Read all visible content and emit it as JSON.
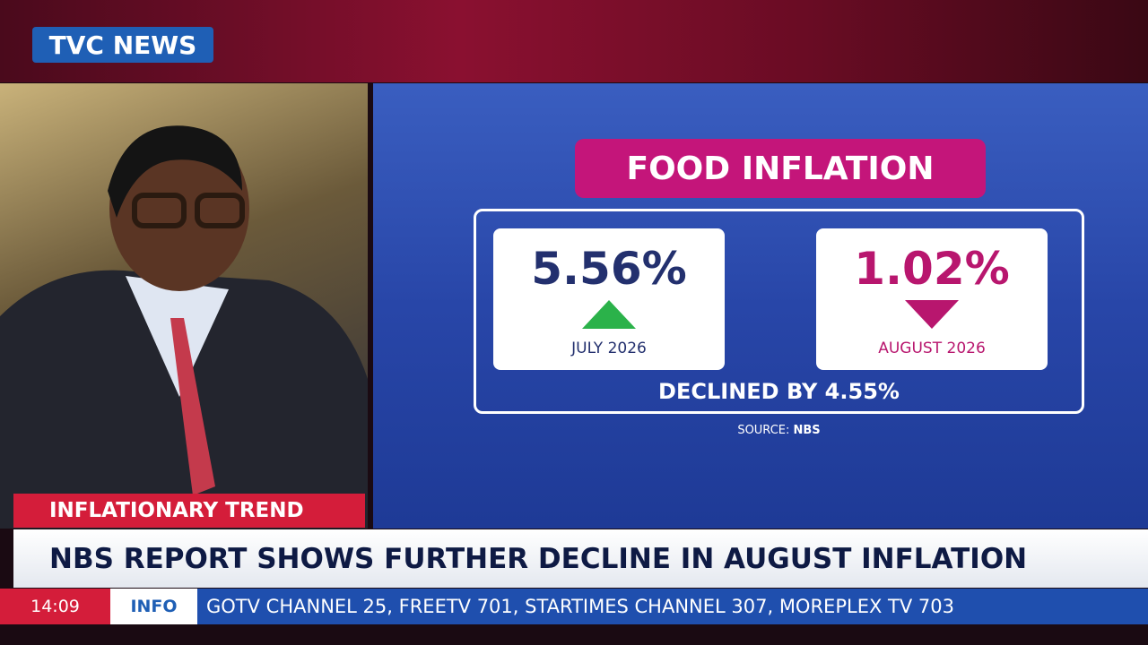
{
  "logo": {
    "left": "TVC",
    "right": "NEWS"
  },
  "graphic": {
    "title": "FOOD INFLATION",
    "cards": [
      {
        "value": "5.56%",
        "label": "JULY 2026"
      },
      {
        "value": "1.02%",
        "label": "AUGUST 2026"
      }
    ],
    "summary": "DECLINED BY 4.55%",
    "source": {
      "label": "SOURCE:",
      "name": "NBS"
    }
  },
  "lower_third": {
    "tag": "INFLATIONARY TREND",
    "headline": "NBS REPORT SHOWS FURTHER DECLINE IN AUGUST INFLATION"
  },
  "ticker": {
    "time": "14:09",
    "label": "INFO",
    "text": "GOTV CHANNEL 25, FREETV 701, STARTIMES CHANNEL 307, MOREPLEX TV 703"
  }
}
